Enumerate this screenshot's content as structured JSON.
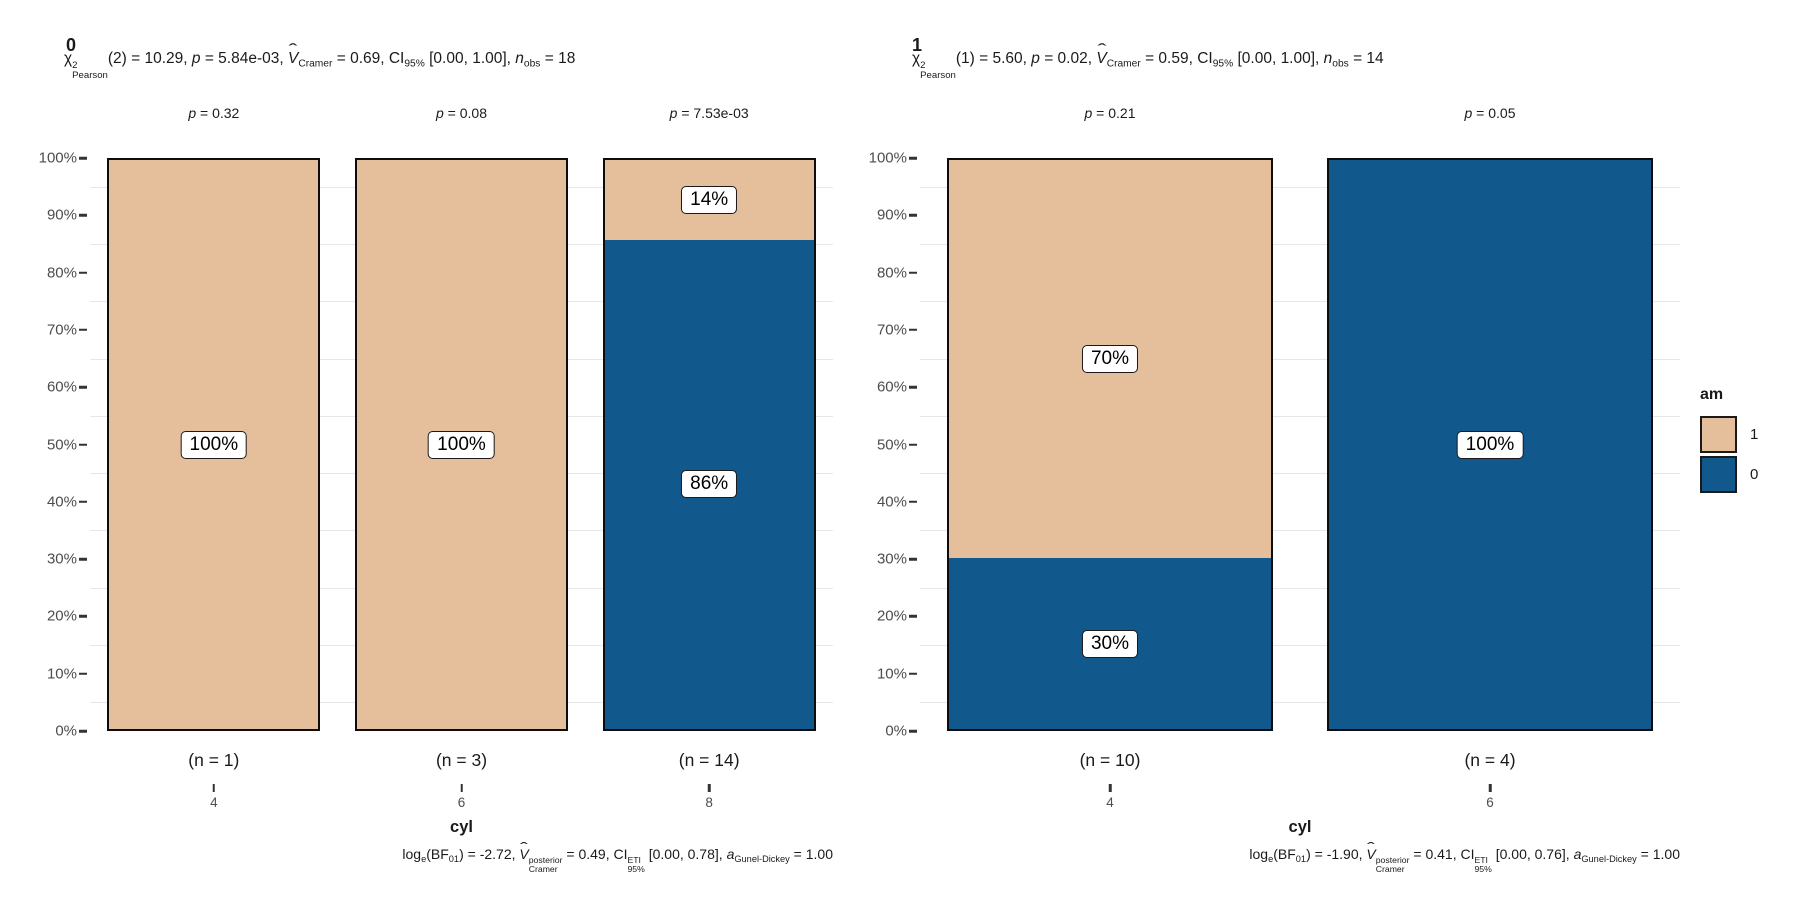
{
  "figure": {
    "background": "#FFFFFF",
    "colors": {
      "am_1": "#E5BE9C",
      "am_0": "#11588C",
      "bar_border": "#0D0D0D",
      "gridline": "#E7E7E7",
      "tick": "#333333",
      "axis_text": "#4D4D4D",
      "text": "#1A1A1A",
      "label_box_bg": "#FFFFFF"
    },
    "legend": {
      "title": "am",
      "position": "right",
      "items": [
        {
          "label": "1",
          "color_key": "am_1"
        },
        {
          "label": "0",
          "color_key": "am_0"
        }
      ]
    }
  },
  "chart_data": [
    {
      "type": "bar",
      "stacked": true,
      "units": "percent",
      "title": "0",
      "subtitle_text": "χ²Pearson(2) = 10.29, p = 5.84e-03, V̂Cramer = 0.69, CI95% [0.00, 1.00], nobs = 18",
      "subtitle_segments": [
        {
          "t": "χ"
        },
        {
          "stack": {
            "sup": "2",
            "sub": "Pearson"
          }
        },
        {
          "t": "(2) = 10.29, "
        },
        {
          "t": "p",
          "i": true
        },
        {
          "t": " = 5.84e-03, "
        },
        {
          "t": "V",
          "i": true,
          "hat": true
        },
        {
          "sub": "Cramer"
        },
        {
          "t": " = 0.69, CI"
        },
        {
          "sub": "95%"
        },
        {
          "t": " [0.00, 1.00], "
        },
        {
          "t": "n",
          "i": true
        },
        {
          "sub": "obs"
        },
        {
          "t": " = 18"
        }
      ],
      "categories": [
        "4",
        "6",
        "8"
      ],
      "series": [
        {
          "name": "1",
          "color_key": "am_1",
          "values": [
            100,
            100,
            14
          ]
        },
        {
          "name": "0",
          "color_key": "am_0",
          "values": [
            0,
            0,
            86
          ]
        }
      ],
      "p_labels": [
        "p = 0.32",
        "p = 0.08",
        "p = 7.53e-03"
      ],
      "n_labels": [
        "(n = 1)",
        "(n = 3)",
        "(n = 14)"
      ],
      "xlabel": "cyl",
      "ylabel": "",
      "ylim": [
        0,
        100
      ],
      "yticks": [
        "0%",
        "10%",
        "20%",
        "30%",
        "40%",
        "50%",
        "60%",
        "70%",
        "80%",
        "90%",
        "100%"
      ],
      "grid": "minor_horizontal_5pct",
      "caption_text": "loge(BF01) = -2.72, V̂posterior Cramer = 0.49, CI ETI 95% [0.00, 0.78], aGunel-Dickey = 1.00",
      "caption_segments": [
        {
          "t": "log"
        },
        {
          "sub": "e"
        },
        {
          "t": "(BF"
        },
        {
          "sub": "01"
        },
        {
          "t": ") = -2.72, "
        },
        {
          "t": "V",
          "i": true,
          "hat": true
        },
        {
          "stack": {
            "sup": "posterior",
            "sub": "Cramer"
          }
        },
        {
          "t": " = 0.49, CI"
        },
        {
          "stack": {
            "sup": "ETI",
            "sub": "95%"
          }
        },
        {
          "t": " [0.00, 0.78], "
        },
        {
          "t": "a",
          "i": true
        },
        {
          "sub": "Gunel-Dickey"
        },
        {
          "t": " = 1.00"
        }
      ]
    },
    {
      "type": "bar",
      "stacked": true,
      "units": "percent",
      "title": "1",
      "subtitle_text": "χ²Pearson(1) = 5.60, p = 0.02, V̂Cramer = 0.59, CI95% [0.00, 1.00], nobs = 14",
      "subtitle_segments": [
        {
          "t": "χ"
        },
        {
          "stack": {
            "sup": "2",
            "sub": "Pearson"
          }
        },
        {
          "t": "(1) = 5.60, "
        },
        {
          "t": "p",
          "i": true
        },
        {
          "t": " = 0.02, "
        },
        {
          "t": "V",
          "i": true,
          "hat": true
        },
        {
          "sub": "Cramer"
        },
        {
          "t": " = 0.59, CI"
        },
        {
          "sub": "95%"
        },
        {
          "t": " [0.00, 1.00], "
        },
        {
          "t": "n",
          "i": true
        },
        {
          "sub": "obs"
        },
        {
          "t": " = 14"
        }
      ],
      "categories": [
        "4",
        "6"
      ],
      "series": [
        {
          "name": "1",
          "color_key": "am_1",
          "values": [
            70,
            0
          ]
        },
        {
          "name": "0",
          "color_key": "am_0",
          "values": [
            30,
            100
          ]
        }
      ],
      "p_labels": [
        "p = 0.21",
        "p = 0.05"
      ],
      "n_labels": [
        "(n = 10)",
        "(n = 4)"
      ],
      "xlabel": "cyl",
      "ylabel": "",
      "ylim": [
        0,
        100
      ],
      "yticks": [
        "0%",
        "10%",
        "20%",
        "30%",
        "40%",
        "50%",
        "60%",
        "70%",
        "80%",
        "90%",
        "100%"
      ],
      "grid": "minor_horizontal_5pct",
      "caption_text": "loge(BF01) = -1.90, V̂posterior Cramer = 0.41, CI ETI 95% [0.00, 0.76], aGunel-Dickey = 1.00",
      "caption_segments": [
        {
          "t": "log"
        },
        {
          "sub": "e"
        },
        {
          "t": "(BF"
        },
        {
          "sub": "01"
        },
        {
          "t": ") = -1.90, "
        },
        {
          "t": "V",
          "i": true,
          "hat": true
        },
        {
          "stack": {
            "sup": "posterior",
            "sub": "Cramer"
          }
        },
        {
          "t": " = 0.41, CI"
        },
        {
          "stack": {
            "sup": "ETI",
            "sub": "95%"
          }
        },
        {
          "t": " [0.00, 0.76], "
        },
        {
          "t": "a",
          "i": true
        },
        {
          "sub": "Gunel-Dickey"
        },
        {
          "t": " = 1.00"
        }
      ]
    }
  ]
}
